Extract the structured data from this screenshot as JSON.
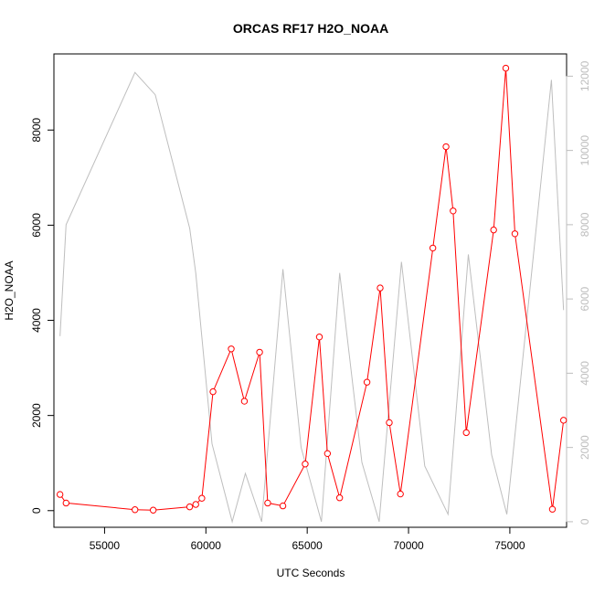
{
  "chart_data": {
    "type": "line",
    "title": "ORCAS RF17 H2O_NOAA",
    "xlabel": "UTC Seconds",
    "ylabel": "H2O_NOAA",
    "xlim": [
      52500,
      77800
    ],
    "ylim": [
      -350,
      9600
    ],
    "y2lim": [
      -150,
      12600
    ],
    "x_ticks": [
      55000,
      60000,
      65000,
      70000,
      75000
    ],
    "x_tick_labels": [
      "55000",
      "60000",
      "65000",
      "70000",
      "75000"
    ],
    "y_ticks": [
      0,
      2000,
      4000,
      6000,
      8000
    ],
    "y_tick_labels": [
      "0",
      "2000",
      "4000",
      "6000",
      "8000"
    ],
    "y2_ticks": [
      0,
      2000,
      4000,
      6000,
      8000,
      10000,
      12000
    ],
    "y2_tick_labels": [
      "0",
      "2000",
      "4000",
      "6000",
      "8000",
      "10000",
      "12000"
    ],
    "grid": false,
    "series": [
      {
        "axis": "left",
        "color": "#ff0000",
        "markers": true,
        "x": [
          52800,
          53100,
          56500,
          57400,
          59200,
          59500,
          59800,
          60350,
          61250,
          61900,
          62650,
          63050,
          63800,
          64900,
          65600,
          66000,
          66600,
          67950,
          68600,
          69050,
          69600,
          71200,
          71850,
          72200,
          72850,
          74200,
          74800,
          75250,
          77100,
          77650
        ],
        "y": [
          340,
          160,
          20,
          10,
          80,
          130,
          260,
          2500,
          3400,
          2300,
          3330,
          160,
          100,
          980,
          3650,
          1200,
          270,
          2700,
          4680,
          1850,
          350,
          5520,
          7650,
          6300,
          1640,
          5900,
          9300,
          5820,
          30,
          1900
        ]
      },
      {
        "axis": "right",
        "color": "#bebebe",
        "markers": false,
        "x": [
          52800,
          53100,
          56500,
          57500,
          59200,
          59500,
          60300,
          61300,
          61950,
          62750,
          63800,
          64700,
          65700,
          66600,
          67700,
          68550,
          69650,
          70800,
          71950,
          72950,
          74100,
          74850,
          77050,
          77650
        ],
        "y": [
          5000,
          8000,
          12100,
          11500,
          7900,
          6700,
          2100,
          0,
          1300,
          0,
          6800,
          2000,
          0,
          6700,
          1600,
          0,
          7000,
          1500,
          200,
          7200,
          1800,
          200,
          11900,
          5700
        ]
      }
    ]
  }
}
